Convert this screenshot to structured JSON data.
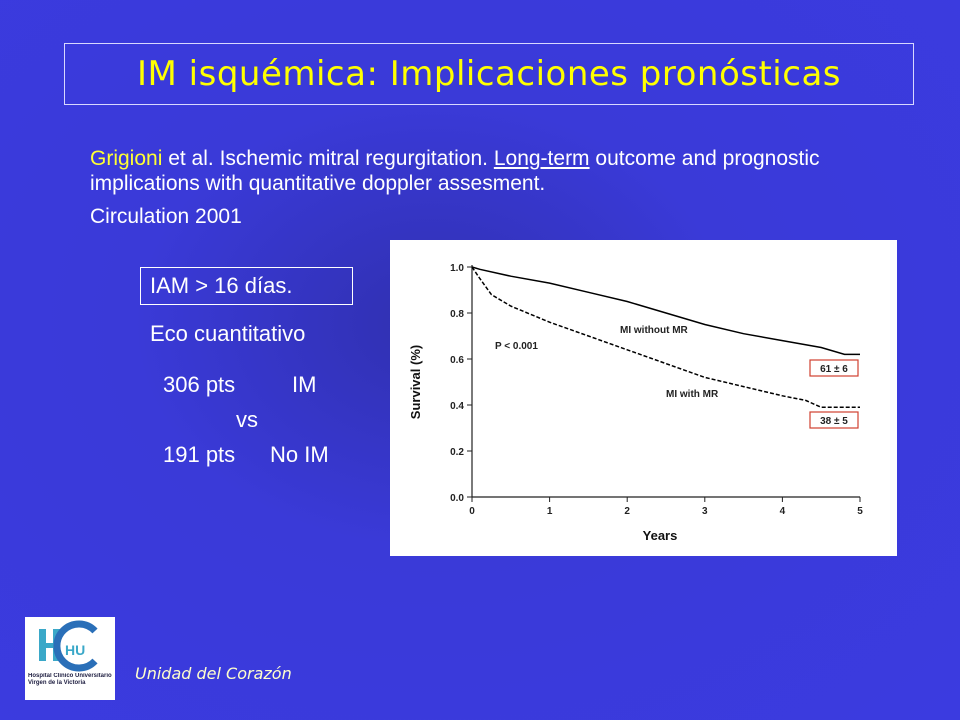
{
  "title": "IM isquémica: Implicaciones pronósticas",
  "citation": {
    "author": "Grigioni",
    "text": " et al. Ischemic mitral regurgitation. ",
    "underlined": "Long-term",
    "rest": " outcome and prognostic implications with quantitative doppler assesment.",
    "journal": "Circulation 2001"
  },
  "criteria": [
    "IAM > 16 días.",
    "Eco cuantitativo"
  ],
  "groups": {
    "first_count": "306 pts",
    "first_label": "IM",
    "versus": "vs",
    "second_count": "191 pts",
    "second_label": "No IM"
  },
  "logo": {
    "mark": "HU",
    "name": "Hospital Clínico Universitario Virgen de la Victoria"
  },
  "footer": "Unidad del Corazón",
  "chart_data": {
    "type": "line",
    "x_label": "Years",
    "y_label": "Survival (%)",
    "xlim": [
      0,
      5
    ],
    "ylim": [
      0,
      1.0
    ],
    "xticks": [
      0,
      1,
      2,
      3,
      4,
      5
    ],
    "yticks": [
      {
        "value": 0,
        "label": "0.0"
      },
      {
        "value": 0.2,
        "label": "0.2"
      },
      {
        "value": 0.4,
        "label": "0.4"
      },
      {
        "value": 0.6,
        "label": "0.6"
      },
      {
        "value": 0.8,
        "label": "0.8"
      },
      {
        "value": 1.0,
        "label": "1.0"
      }
    ],
    "series": [
      {
        "name": "MI without MR",
        "color": "#000000",
        "line_style": "solid",
        "x": [
          0,
          0.1,
          0.5,
          1.0,
          1.5,
          2.0,
          2.5,
          3.0,
          3.5,
          4.0,
          4.5,
          4.8,
          5.0
        ],
        "values": [
          1.0,
          0.99,
          0.96,
          0.93,
          0.89,
          0.85,
          0.8,
          0.75,
          0.71,
          0.68,
          0.65,
          0.62,
          0.62
        ]
      },
      {
        "name": "MI with MR",
        "color": "#000000",
        "line_style": "dashed",
        "x": [
          0,
          0.1,
          0.25,
          0.5,
          1.0,
          1.5,
          2.0,
          2.5,
          3.0,
          3.5,
          4.0,
          4.3,
          4.5,
          5.0
        ],
        "values": [
          1.0,
          0.95,
          0.88,
          0.83,
          0.76,
          0.7,
          0.64,
          0.58,
          0.52,
          0.48,
          0.44,
          0.42,
          0.39,
          0.39
        ]
      }
    ],
    "annotations": [
      "P < 0.001"
    ],
    "end_labels": [
      "61 ± 6",
      "38 ± 5"
    ]
  }
}
